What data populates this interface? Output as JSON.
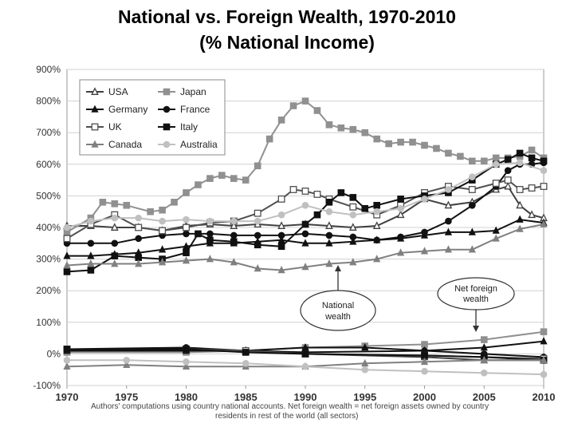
{
  "title_line1": "National vs. Foreign Wealth, 1970-2010",
  "title_line2": "(% National Income)",
  "chart_data": {
    "type": "line",
    "title": "National vs. Foreign Wealth, 1970-2010 (% National Income)",
    "xlabel": "",
    "ylabel": "",
    "xlim": [
      1970,
      2010
    ],
    "ylim": [
      -100,
      900
    ],
    "x_ticks": [
      "1970",
      "1975",
      "1980",
      "1985",
      "1990",
      "1995",
      "2000",
      "2005",
      "2010"
    ],
    "y_ticks": [
      "900%",
      "800%",
      "700%",
      "600%",
      "500%",
      "400%",
      "300%",
      "200%",
      "100%",
      "0%",
      "-100%"
    ],
    "legend": [
      "USA",
      "Japan",
      "Germany",
      "France",
      "UK",
      "Italy",
      "Canada",
      "Australia"
    ],
    "annotations": {
      "national": [
        "National",
        "wealth"
      ],
      "foreign": [
        "Net foreign",
        "wealth"
      ]
    },
    "source_note": [
      "Authors' computations using country national accounts. Net foreign wealth = net foreign assets owned by country",
      "residents in rest of the world (all sectors)"
    ],
    "series": [
      {
        "name": "USA",
        "x": [
          1970,
          1972,
          1974,
          1976,
          1978,
          1980,
          1982,
          1984,
          1986,
          1988,
          1990,
          1992,
          1994,
          1996,
          1998,
          2000,
          2002,
          2004,
          2006,
          2007,
          2008,
          2009,
          2010
        ],
        "values": [
          405,
          405,
          400,
          400,
          390,
          405,
          410,
          405,
          410,
          405,
          410,
          405,
          400,
          405,
          440,
          490,
          470,
          480,
          520,
          530,
          470,
          440,
          430
        ]
      },
      {
        "name": "Japan",
        "x": [
          1970,
          1972,
          1973,
          1974,
          1975,
          1977,
          1978,
          1979,
          1980,
          1981,
          1982,
          1983,
          1984,
          1985,
          1986,
          1987,
          1988,
          1989,
          1990,
          1991,
          1992,
          1993,
          1994,
          1995,
          1996,
          1997,
          1998,
          1999,
          2000,
          2001,
          2002,
          2003,
          2004,
          2005,
          2006,
          2007,
          2008,
          2009,
          2010
        ],
        "values": [
          385,
          430,
          480,
          475,
          470,
          450,
          455,
          480,
          510,
          535,
          555,
          565,
          555,
          550,
          595,
          680,
          740,
          785,
          800,
          770,
          725,
          715,
          710,
          700,
          680,
          665,
          670,
          670,
          660,
          650,
          635,
          625,
          610,
          610,
          620,
          620,
          625,
          645,
          620
        ]
      },
      {
        "name": "Germany",
        "x": [
          1970,
          1972,
          1974,
          1976,
          1978,
          1980,
          1982,
          1984,
          1986,
          1988,
          1990,
          1992,
          1994,
          1996,
          1998,
          2000,
          2002,
          2004,
          2006,
          2008,
          2010
        ],
        "values": [
          310,
          310,
          315,
          320,
          330,
          340,
          350,
          350,
          355,
          360,
          350,
          350,
          355,
          360,
          365,
          375,
          385,
          385,
          390,
          425,
          415
        ]
      },
      {
        "name": "France",
        "x": [
          1970,
          1972,
          1974,
          1976,
          1978,
          1980,
          1982,
          1984,
          1986,
          1988,
          1990,
          1992,
          1994,
          1996,
          1998,
          2000,
          2002,
          2004,
          2006,
          2007,
          2008,
          2009,
          2010
        ],
        "values": [
          350,
          350,
          350,
          365,
          375,
          380,
          380,
          375,
          375,
          375,
          380,
          375,
          370,
          360,
          370,
          385,
          420,
          470,
          530,
          580,
          600,
          600,
          605
        ]
      },
      {
        "name": "UK",
        "x": [
          1970,
          1972,
          1974,
          1976,
          1978,
          1980,
          1982,
          1984,
          1986,
          1988,
          1989,
          1990,
          1991,
          1992,
          1994,
          1996,
          1998,
          2000,
          2002,
          2004,
          2006,
          2007,
          2008,
          2009,
          2010
        ],
        "values": [
          365,
          410,
          440,
          400,
          390,
          400,
          415,
          420,
          445,
          490,
          520,
          515,
          505,
          490,
          465,
          440,
          470,
          510,
          530,
          520,
          540,
          550,
          520,
          525,
          530
        ]
      },
      {
        "name": "Italy",
        "x": [
          1970,
          1972,
          1974,
          1976,
          1978,
          1980,
          1981,
          1982,
          1984,
          1986,
          1988,
          1990,
          1991,
          1992,
          1993,
          1994,
          1995,
          1996,
          1998,
          2000,
          2002,
          2004,
          2006,
          2007,
          2008,
          2009,
          2010
        ],
        "values": [
          260,
          265,
          310,
          305,
          300,
          320,
          380,
          360,
          355,
          345,
          340,
          410,
          440,
          480,
          510,
          495,
          460,
          470,
          490,
          500,
          510,
          550,
          600,
          615,
          635,
          620,
          610
        ]
      },
      {
        "name": "Canada",
        "x": [
          1970,
          1972,
          1974,
          1976,
          1978,
          1980,
          1982,
          1984,
          1986,
          1988,
          1990,
          1992,
          1994,
          1996,
          1998,
          2000,
          2002,
          2004,
          2006,
          2008,
          2010
        ],
        "values": [
          280,
          285,
          285,
          285,
          290,
          295,
          300,
          290,
          270,
          265,
          275,
          285,
          290,
          300,
          320,
          325,
          330,
          330,
          365,
          395,
          410
        ]
      },
      {
        "name": "Australia",
        "x": [
          1970,
          1972,
          1974,
          1976,
          1978,
          1980,
          1982,
          1984,
          1986,
          1988,
          1990,
          1992,
          1994,
          1996,
          1998,
          2000,
          2002,
          2004,
          2006,
          2008,
          2010
        ],
        "values": [
          400,
          420,
          430,
          430,
          420,
          425,
          420,
          420,
          420,
          440,
          470,
          450,
          440,
          450,
          460,
          490,
          520,
          560,
          600,
          605,
          580
        ]
      },
      {
        "name": "USA net foreign",
        "x": [
          1970,
          1980,
          1985,
          1990,
          2000,
          2005,
          2010
        ],
        "values": [
          10,
          10,
          10,
          0,
          -10,
          -20,
          -20
        ]
      },
      {
        "name": "Japan net foreign",
        "x": [
          1970,
          1980,
          1985,
          1990,
          1995,
          2000,
          2005,
          2010
        ],
        "values": [
          5,
          5,
          10,
          20,
          25,
          30,
          45,
          70
        ]
      },
      {
        "name": "Germany net foreign",
        "x": [
          1970,
          1980,
          1985,
          1990,
          1995,
          2000,
          2005,
          2010
        ],
        "values": [
          10,
          10,
          10,
          20,
          20,
          10,
          20,
          40
        ]
      },
      {
        "name": "France net foreign",
        "x": [
          1970,
          1980,
          1985,
          1990,
          2000,
          2005,
          2010
        ],
        "values": [
          15,
          20,
          10,
          5,
          10,
          0,
          -10
        ]
      },
      {
        "name": "UK net foreign",
        "x": [
          1970,
          1980,
          1985,
          1990,
          2000,
          2005,
          2010
        ],
        "values": [
          15,
          15,
          10,
          0,
          -5,
          -10,
          -15
        ]
      },
      {
        "name": "Italy net foreign",
        "x": [
          1970,
          1980,
          1985,
          1990,
          2000,
          2005,
          2010
        ],
        "values": [
          15,
          15,
          5,
          0,
          -5,
          -10,
          -20
        ]
      },
      {
        "name": "Canada net foreign",
        "x": [
          1970,
          1975,
          1980,
          1985,
          1990,
          1995,
          2000,
          2005,
          2010
        ],
        "values": [
          -40,
          -35,
          -40,
          -40,
          -40,
          -30,
          -25,
          -20,
          -20
        ]
      },
      {
        "name": "Australia net foreign",
        "x": [
          1970,
          1975,
          1980,
          1985,
          1990,
          1995,
          2000,
          2005,
          2010
        ],
        "values": [
          -20,
          -20,
          -25,
          -30,
          -40,
          -50,
          -55,
          -60,
          -65
        ]
      }
    ]
  },
  "styles": {
    "USA": {
      "color": "#404040",
      "marker": "tri-open"
    },
    "Japan": {
      "color": "#909090",
      "marker": "square"
    },
    "Germany": {
      "color": "#111111",
      "marker": "tri"
    },
    "France": {
      "color": "#111111",
      "marker": "circle"
    },
    "UK": {
      "color": "#505050",
      "marker": "square-open"
    },
    "Italy": {
      "color": "#111111",
      "marker": "square"
    },
    "Canada": {
      "color": "#808080",
      "marker": "tri"
    },
    "Australia": {
      "color": "#c0c0c0",
      "marker": "circle"
    },
    "USA net foreign": {
      "color": "#404040",
      "marker": "tri-open"
    },
    "Japan net foreign": {
      "color": "#909090",
      "marker": "square"
    },
    "Germany net foreign": {
      "color": "#111111",
      "marker": "tri"
    },
    "France net foreign": {
      "color": "#111111",
      "marker": "circle"
    },
    "UK net foreign": {
      "color": "#505050",
      "marker": "square-open"
    },
    "Italy net foreign": {
      "color": "#111111",
      "marker": "square"
    },
    "Canada net foreign": {
      "color": "#808080",
      "marker": "tri"
    },
    "Australia net foreign": {
      "color": "#c0c0c0",
      "marker": "circle"
    }
  }
}
